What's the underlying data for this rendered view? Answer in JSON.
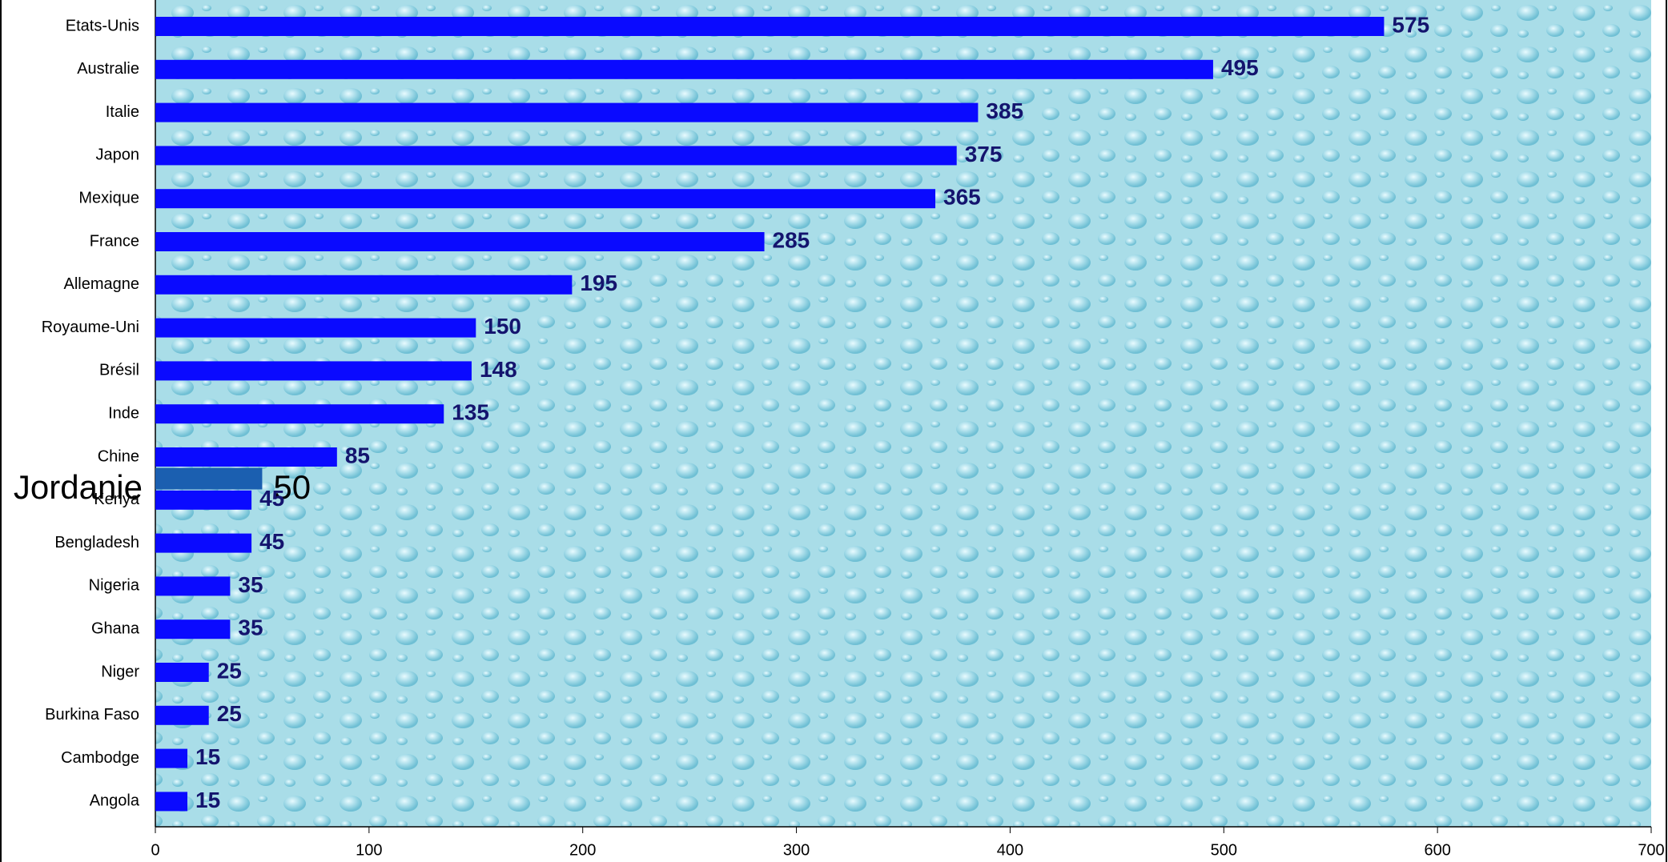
{
  "chart_data": {
    "type": "barh",
    "categories": [
      "Etats-Unis",
      "Australie",
      "Italie",
      "Japon",
      "Mexique",
      "France",
      "Allemagne",
      "Royaume-Uni",
      "Brésil",
      "Inde",
      "Chine",
      "Jordanie",
      "Kenya",
      "Bengladesh",
      "Nigeria",
      "Ghana",
      "Niger",
      "Burkina Faso",
      "Cambodge",
      "Angola"
    ],
    "values": [
      575,
      495,
      385,
      375,
      365,
      285,
      195,
      150,
      148,
      135,
      85,
      50,
      45,
      45,
      35,
      35,
      25,
      25,
      15,
      15
    ],
    "color": "#0a0aff",
    "colors": [
      "#0a0aff",
      "#0a0aff",
      "#0a0aff",
      "#0a0aff",
      "#0a0aff",
      "#0a0aff",
      "#0a0aff",
      "#0a0aff",
      "#0a0aff",
      "#0a0aff",
      "#0a0aff",
      "#1b5fb0",
      "#0a0aff",
      "#0a0aff",
      "#0a0aff",
      "#0a0aff",
      "#0a0aff",
      "#0a0aff",
      "#0a0aff",
      "#0a0aff"
    ],
    "xlim": [
      0,
      700
    ],
    "xticks": [
      0,
      100,
      200,
      300,
      400,
      500,
      600,
      700
    ],
    "grid": false
  }
}
